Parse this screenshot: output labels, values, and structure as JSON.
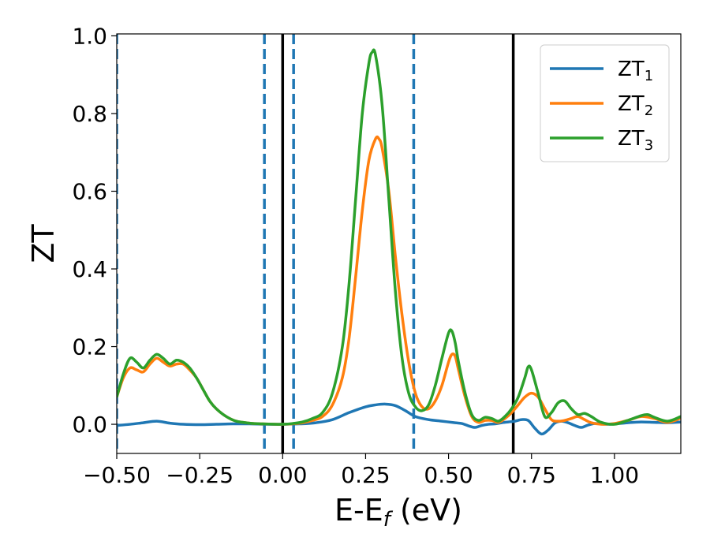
{
  "chart_data": {
    "type": "line",
    "title": "",
    "xlabel": {
      "main": "E-E",
      "sub": "f",
      "rest": " (eV)"
    },
    "ylabel": "ZT",
    "xlim": [
      -0.5,
      1.2
    ],
    "ylim": [
      -0.075,
      1.005
    ],
    "xticks": [
      {
        "value": -0.5,
        "label": "−0.50"
      },
      {
        "value": -0.25,
        "label": "−0.25"
      },
      {
        "value": 0.0,
        "label": "0.00"
      },
      {
        "value": 0.25,
        "label": "0.25"
      },
      {
        "value": 0.5,
        "label": "0.50"
      },
      {
        "value": 0.75,
        "label": "0.75"
      },
      {
        "value": 1.0,
        "label": "1.00"
      }
    ],
    "yticks": [
      {
        "value": 0.0,
        "label": "0.0"
      },
      {
        "value": 0.2,
        "label": "0.2"
      },
      {
        "value": 0.4,
        "label": "0.4"
      },
      {
        "value": 0.6,
        "label": "0.6"
      },
      {
        "value": 0.8,
        "label": "0.8"
      },
      {
        "value": 1.0,
        "label": "1.0"
      }
    ],
    "grid": false,
    "legend_position": "top-right",
    "vlines": [
      {
        "x": -0.5,
        "style": "dashed",
        "color": "#1f77b4"
      },
      {
        "x": -0.055,
        "style": "dashed",
        "color": "#1f77b4"
      },
      {
        "x": 0.033,
        "style": "dashed",
        "color": "#1f77b4"
      },
      {
        "x": 0.395,
        "style": "dashed",
        "color": "#1f77b4"
      },
      {
        "x": 0.0,
        "style": "solid",
        "color": "#000000"
      },
      {
        "x": 0.695,
        "style": "solid",
        "color": "#000000"
      }
    ],
    "series": [
      {
        "name": "ZT",
        "sub": "1",
        "color": "#1f77b4",
        "x": [
          -0.5,
          -0.46,
          -0.42,
          -0.38,
          -0.34,
          -0.3,
          -0.25,
          -0.2,
          -0.15,
          -0.1,
          -0.05,
          0.0,
          0.05,
          0.1,
          0.15,
          0.2,
          0.25,
          0.28,
          0.31,
          0.34,
          0.37,
          0.4,
          0.44,
          0.48,
          0.52,
          0.54,
          0.56,
          0.58,
          0.6,
          0.62,
          0.64,
          0.66,
          0.68,
          0.7,
          0.72,
          0.74,
          0.76,
          0.78,
          0.8,
          0.82,
          0.84,
          0.86,
          0.88,
          0.9,
          0.92,
          0.94,
          0.96,
          0.98,
          1.0,
          1.04,
          1.08,
          1.12,
          1.16,
          1.2
        ],
        "y": [
          -0.003,
          0.0,
          0.004,
          0.008,
          0.003,
          0.0,
          -0.001,
          0.0,
          0.001,
          0.001,
          0.0,
          0.0,
          0.001,
          0.004,
          0.012,
          0.03,
          0.045,
          0.05,
          0.052,
          0.048,
          0.035,
          0.02,
          0.012,
          0.008,
          0.004,
          0.002,
          -0.004,
          -0.008,
          -0.003,
          0.0,
          0.001,
          0.004,
          0.006,
          0.008,
          0.012,
          0.01,
          -0.01,
          -0.025,
          -0.015,
          0.003,
          0.008,
          0.004,
          -0.003,
          -0.008,
          -0.002,
          0.002,
          0.001,
          0.0,
          0.001,
          0.004,
          0.006,
          0.005,
          0.004,
          0.006
        ]
      },
      {
        "name": "ZT",
        "sub": "2",
        "color": "#ff7f0e",
        "x": [
          -0.5,
          -0.48,
          -0.46,
          -0.44,
          -0.42,
          -0.4,
          -0.38,
          -0.36,
          -0.34,
          -0.32,
          -0.3,
          -0.28,
          -0.26,
          -0.24,
          -0.22,
          -0.2,
          -0.17,
          -0.14,
          -0.1,
          -0.06,
          -0.02,
          0.0,
          0.03,
          0.06,
          0.09,
          0.12,
          0.15,
          0.18,
          0.2,
          0.22,
          0.24,
          0.26,
          0.28,
          0.29,
          0.3,
          0.32,
          0.34,
          0.36,
          0.38,
          0.4,
          0.42,
          0.44,
          0.46,
          0.48,
          0.5,
          0.51,
          0.52,
          0.53,
          0.55,
          0.57,
          0.59,
          0.61,
          0.63,
          0.65,
          0.67,
          0.69,
          0.71,
          0.73,
          0.75,
          0.77,
          0.79,
          0.81,
          0.83,
          0.85,
          0.87,
          0.89,
          0.91,
          0.93,
          0.96,
          1.0,
          1.04,
          1.08,
          1.12,
          1.16,
          1.2
        ],
        "y": [
          0.07,
          0.12,
          0.145,
          0.14,
          0.135,
          0.155,
          0.17,
          0.16,
          0.15,
          0.155,
          0.155,
          0.14,
          0.12,
          0.09,
          0.06,
          0.04,
          0.02,
          0.008,
          0.003,
          0.001,
          0.0,
          0.0,
          0.001,
          0.004,
          0.01,
          0.02,
          0.05,
          0.12,
          0.22,
          0.38,
          0.55,
          0.68,
          0.735,
          0.735,
          0.71,
          0.6,
          0.43,
          0.28,
          0.16,
          0.08,
          0.045,
          0.04,
          0.06,
          0.1,
          0.16,
          0.18,
          0.175,
          0.14,
          0.07,
          0.02,
          0.005,
          0.01,
          0.01,
          0.005,
          0.015,
          0.03,
          0.05,
          0.07,
          0.08,
          0.07,
          0.04,
          0.012,
          0.008,
          0.01,
          0.015,
          0.02,
          0.012,
          0.004,
          0.0,
          0.002,
          0.01,
          0.02,
          0.015,
          0.005,
          0.016
        ]
      },
      {
        "name": "ZT",
        "sub": "3",
        "color": "#2ca02c",
        "x": [
          -0.5,
          -0.48,
          -0.46,
          -0.44,
          -0.42,
          -0.4,
          -0.38,
          -0.36,
          -0.34,
          -0.32,
          -0.3,
          -0.28,
          -0.26,
          -0.24,
          -0.22,
          -0.2,
          -0.17,
          -0.14,
          -0.1,
          -0.06,
          -0.02,
          0.0,
          0.03,
          0.06,
          0.09,
          0.12,
          0.15,
          0.18,
          0.2,
          0.22,
          0.24,
          0.26,
          0.27,
          0.28,
          0.3,
          0.32,
          0.34,
          0.36,
          0.38,
          0.4,
          0.42,
          0.44,
          0.46,
          0.48,
          0.5,
          0.51,
          0.52,
          0.53,
          0.55,
          0.57,
          0.59,
          0.61,
          0.63,
          0.65,
          0.67,
          0.69,
          0.71,
          0.73,
          0.74,
          0.75,
          0.77,
          0.79,
          0.81,
          0.83,
          0.85,
          0.87,
          0.89,
          0.91,
          0.93,
          0.96,
          1.0,
          1.04,
          1.08,
          1.1,
          1.12,
          1.16,
          1.2
        ],
        "y": [
          0.07,
          0.13,
          0.17,
          0.16,
          0.145,
          0.165,
          0.18,
          0.17,
          0.155,
          0.165,
          0.16,
          0.145,
          0.12,
          0.09,
          0.06,
          0.04,
          0.02,
          0.008,
          0.003,
          0.001,
          0.0,
          0.0,
          0.002,
          0.006,
          0.015,
          0.03,
          0.08,
          0.2,
          0.36,
          0.58,
          0.8,
          0.93,
          0.958,
          0.95,
          0.82,
          0.58,
          0.34,
          0.17,
          0.08,
          0.045,
          0.035,
          0.05,
          0.1,
          0.17,
          0.235,
          0.24,
          0.21,
          0.16,
          0.08,
          0.025,
          0.01,
          0.018,
          0.015,
          0.008,
          0.02,
          0.04,
          0.07,
          0.12,
          0.148,
          0.14,
          0.08,
          0.02,
          0.03,
          0.055,
          0.06,
          0.04,
          0.025,
          0.028,
          0.02,
          0.005,
          0.0,
          0.01,
          0.022,
          0.025,
          0.018,
          0.008,
          0.02
        ]
      }
    ]
  }
}
